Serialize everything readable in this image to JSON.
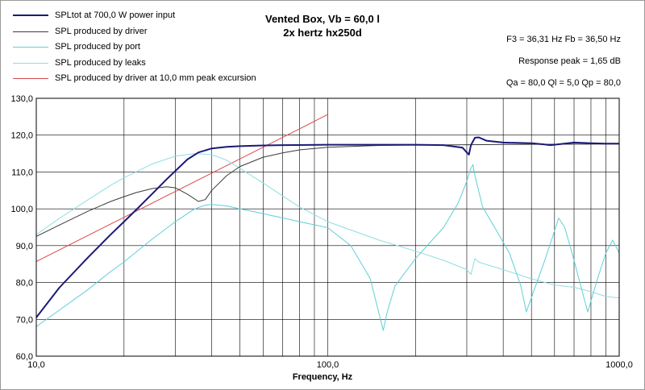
{
  "chart_data": {
    "type": "line",
    "title": "Vented Box, Vb = 60,0 l",
    "subtitle": "2x hertz hx250d",
    "xlabel": "Frequency, Hz",
    "ylabel": "",
    "x_scale": "log",
    "xlim": [
      10,
      1000
    ],
    "ylim": [
      60,
      130
    ],
    "grid": true,
    "legend_position": "top-left",
    "x_ticks": [
      "10,0",
      "100,0",
      "1000,0"
    ],
    "y_ticks": [
      "60,0",
      "70,0",
      "80,0",
      "90,0",
      "100,0",
      "110,0",
      "120,0",
      "130,0"
    ],
    "info": {
      "line1": "F3 = 36,31 Hz   Fb = 36,50 Hz",
      "line2": "Response peak = 1,65 dB",
      "line3": "Qa = 80,0   Ql = 5,0   Qp = 80,0"
    },
    "series": [
      {
        "name": "SPLtot at 700,0 W power input",
        "color": "#1a1a78",
        "width": 2,
        "x": [
          10,
          12,
          15,
          18,
          20,
          22,
          25,
          28,
          30,
          33,
          36,
          40,
          45,
          50,
          60,
          70,
          100,
          150,
          200,
          250,
          290,
          300,
          305,
          310,
          320,
          330,
          350,
          400,
          500,
          550,
          580,
          600,
          700,
          800,
          900,
          1000
        ],
        "y": [
          70.5,
          78.6,
          86.7,
          93.0,
          96.5,
          99.7,
          104.1,
          108.0,
          110.3,
          113.4,
          115.3,
          116.4,
          116.8,
          117.0,
          117.2,
          117.3,
          117.4,
          117.4,
          117.4,
          117.3,
          116.6,
          115.3,
          114.7,
          117.3,
          119.3,
          119.4,
          118.5,
          118.0,
          117.8,
          117.5,
          117.3,
          117.4,
          118.0,
          117.8,
          117.7,
          117.7
        ]
      },
      {
        "name": "SPL produced by driver",
        "color": "#3a3a3a",
        "width": 1,
        "x": [
          10,
          12,
          15,
          18,
          20,
          22,
          25,
          28,
          30,
          33,
          36,
          38,
          40,
          45,
          50,
          60,
          70,
          80,
          100,
          150,
          200,
          300,
          500,
          1000
        ],
        "y": [
          92.5,
          95.6,
          99.3,
          102.0,
          103.3,
          104.4,
          105.5,
          106.0,
          105.7,
          104.0,
          102.0,
          102.5,
          105.0,
          109.0,
          111.5,
          114.0,
          115.2,
          116.0,
          116.7,
          117.2,
          117.3,
          117.4,
          117.5,
          117.6
        ]
      },
      {
        "name": "SPL produced by port",
        "color": "#5fcfd8",
        "width": 1,
        "x": [
          10,
          12,
          15,
          18,
          20,
          25,
          30,
          35,
          38,
          40,
          45,
          50,
          60,
          80,
          100,
          120,
          140,
          155,
          160,
          170,
          200,
          250,
          280,
          300,
          310,
          315,
          320,
          340,
          380,
          420,
          460,
          480,
          500,
          550,
          600,
          620,
          650,
          700,
          750,
          780,
          800,
          850,
          900,
          950,
          1000
        ],
        "y": [
          68.0,
          72.5,
          78.0,
          83.0,
          85.6,
          91.8,
          96.5,
          100.0,
          101.0,
          101.2,
          100.8,
          100.0,
          98.7,
          96.5,
          94.9,
          90.0,
          81.0,
          67.0,
          72.0,
          79.0,
          86.5,
          95.0,
          101.5,
          107.5,
          111.0,
          112.0,
          109.0,
          100.5,
          94.0,
          88.0,
          79.0,
          72.0,
          76.0,
          85.0,
          94.0,
          97.5,
          95.0,
          86.0,
          77.0,
          72.0,
          75.0,
          82.0,
          88.0,
          91.5,
          88.0
        ]
      },
      {
        "name": "SPL produced by leaks",
        "color": "#8fdde2",
        "width": 1,
        "x": [
          10,
          12,
          15,
          18,
          20,
          25,
          30,
          35,
          40,
          45,
          50,
          60,
          70,
          80,
          100,
          150,
          200,
          250,
          300,
          310,
          320,
          330,
          400,
          500,
          600,
          700,
          800,
          900,
          1000
        ],
        "y": [
          93.0,
          97.4,
          102.4,
          106.4,
          108.4,
          112.2,
          114.3,
          115.0,
          114.7,
          113.2,
          111.0,
          107.0,
          103.5,
          100.5,
          96.5,
          91.5,
          88.5,
          86.0,
          83.5,
          82.2,
          86.5,
          85.5,
          83.5,
          81.0,
          79.3,
          78.7,
          77.5,
          76.2,
          75.8
        ]
      },
      {
        "name": "SPL produced by driver at 10,0 mm peak excursion",
        "color": "#d94a4a",
        "width": 1,
        "x": [
          10,
          20,
          40,
          80,
          100
        ],
        "y": [
          85.7,
          97.7,
          109.7,
          121.7,
          125.6
        ]
      }
    ]
  }
}
